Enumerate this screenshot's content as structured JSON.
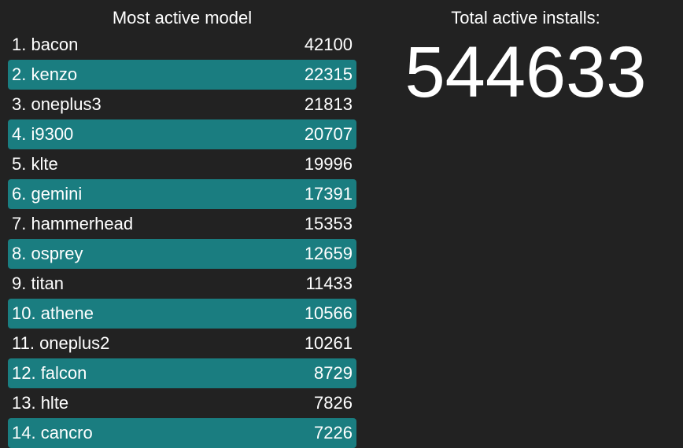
{
  "models_panel": {
    "title": "Most active model",
    "rows": [
      {
        "label": "1. bacon",
        "count": "42100"
      },
      {
        "label": "2. kenzo",
        "count": "22315"
      },
      {
        "label": "3. oneplus3",
        "count": "21813"
      },
      {
        "label": "4. i9300",
        "count": "20707"
      },
      {
        "label": "5. klte",
        "count": "19996"
      },
      {
        "label": "6. gemini",
        "count": "17391"
      },
      {
        "label": "7. hammerhead",
        "count": "15353"
      },
      {
        "label": "8. osprey",
        "count": "12659"
      },
      {
        "label": "9. titan",
        "count": "11433"
      },
      {
        "label": "10. athene",
        "count": "10566"
      },
      {
        "label": "11. oneplus2",
        "count": "10261"
      },
      {
        "label": "12. falcon",
        "count": "8729"
      },
      {
        "label": "13. hlte",
        "count": "7826"
      },
      {
        "label": "14. cancro",
        "count": "7226"
      }
    ]
  },
  "total_panel": {
    "title": "Total active installs:",
    "value": "544633"
  },
  "colors": {
    "background": "#222222",
    "row_highlight": "#1a7d80",
    "text": "#ffffff"
  }
}
